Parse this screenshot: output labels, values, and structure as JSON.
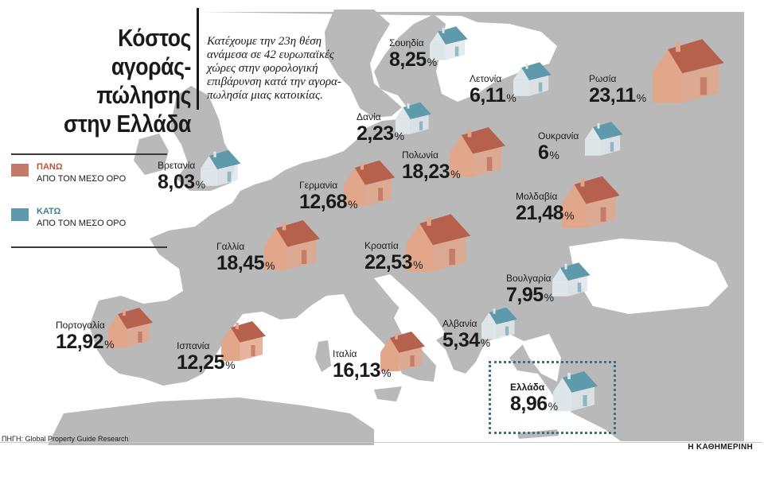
{
  "title": {
    "line1": "Κόστος",
    "line2": "αγοράς-πώλησης",
    "line3": "στην Ελλάδα"
  },
  "subtitle": {
    "line1": "Κατέχουμε την 23η θέση",
    "line2": "ανάμεσα σε 42 ευρωπαϊκές",
    "line3": "χώρες στην φορολογική",
    "line4": "επιβάρυνση κατά την αγορα-",
    "line5": "πωλησία μιας κατοικίας."
  },
  "legend": {
    "above": {
      "label": "ΠΑΝΩ",
      "desc": "ΑΠΟ ΤΟΝ ΜΕΣΟ ΟΡΟ",
      "color": "#c47a66"
    },
    "below": {
      "label": "ΚΑΤΩ",
      "desc": "ΑΠΟ ΤΟΝ ΜΕΣΟ ΟΡΟ",
      "color": "#5e9aab"
    }
  },
  "percent_sign": "%",
  "countries": [
    {
      "name": "Σουηδία",
      "value": "8,25",
      "level": "below"
    },
    {
      "name": "Λετονία",
      "value": "6,11",
      "level": "below"
    },
    {
      "name": "Ρωσία",
      "value": "23,11",
      "level": "above"
    },
    {
      "name": "Δανία",
      "value": "2,23",
      "level": "below"
    },
    {
      "name": "Ουκρανία",
      "value": "6",
      "level": "below"
    },
    {
      "name": "Βρετανία",
      "value": "8,03",
      "level": "below"
    },
    {
      "name": "Πολωνία",
      "value": "18,23",
      "level": "above"
    },
    {
      "name": "Γερμανία",
      "value": "12,68",
      "level": "above"
    },
    {
      "name": "Μολδαβία",
      "value": "21,48",
      "level": "above"
    },
    {
      "name": "Γαλλία",
      "value": "18,45",
      "level": "above"
    },
    {
      "name": "Κροατία",
      "value": "22,53",
      "level": "above"
    },
    {
      "name": "Βουλγαρία",
      "value": "7,95",
      "level": "below"
    },
    {
      "name": "Πορτογαλία",
      "value": "12,92",
      "level": "above"
    },
    {
      "name": "Ισπανία",
      "value": "12,25",
      "level": "above"
    },
    {
      "name": "Ιταλία",
      "value": "16,13",
      "level": "above"
    },
    {
      "name": "Αλβανία",
      "value": "5,34",
      "level": "below"
    },
    {
      "name": "Ελλάδα",
      "value": "8,96",
      "level": "below"
    }
  ],
  "colors": {
    "land": "#b9b9b9",
    "sea": "#ffffff",
    "house_above_front": "#e2a68b",
    "house_above_roof": "#b5614e",
    "house_below_front": "#dfe6ea",
    "house_below_roof": "#5e9aab"
  },
  "source": "ΠΗΓΗ: Global Property Guide Research",
  "publisher": "Η ΚΑΘΗΜΕΡΙΝΗ"
}
